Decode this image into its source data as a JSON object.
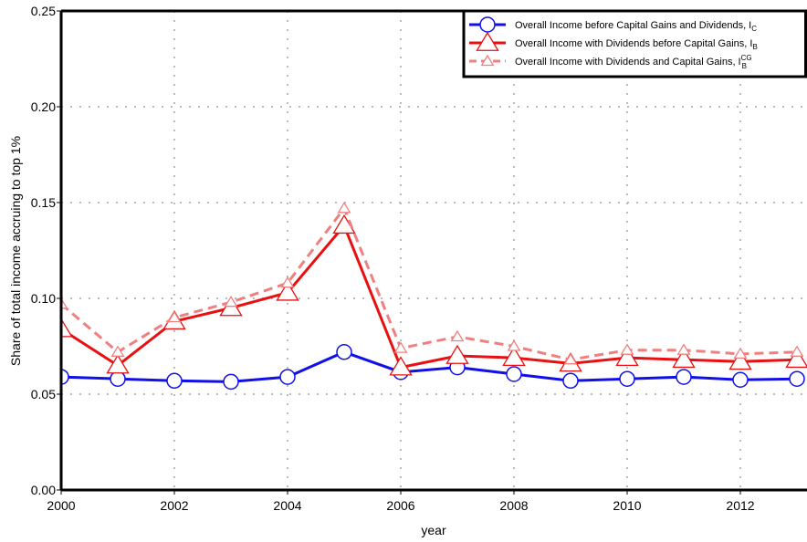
{
  "chart_data": {
    "type": "line",
    "x_label": "year",
    "y_label": "Share of total income accruing to top 1%",
    "x": [
      2000,
      2001,
      2002,
      2003,
      2004,
      2005,
      2006,
      2007,
      2008,
      2009,
      2010,
      2011,
      2012,
      2013
    ],
    "series": [
      {
        "name": "Overall Income before Capital Gains and Dividends, I",
        "subscript": "C",
        "color": "#1010e8",
        "marker": "circle",
        "dashed": false,
        "values": [
          0.059,
          0.058,
          0.057,
          0.0565,
          0.059,
          0.072,
          0.0615,
          0.064,
          0.0605,
          0.057,
          0.058,
          0.059,
          0.0575,
          0.058
        ]
      },
      {
        "name": "Overall Income with Dividends before Capital Gains, I",
        "subscript": "B",
        "color": "#e81010",
        "marker": "triangle",
        "dashed": false,
        "values": [
          0.084,
          0.065,
          0.088,
          0.095,
          0.103,
          0.138,
          0.064,
          0.07,
          0.069,
          0.066,
          0.069,
          0.068,
          0.067,
          0.068
        ]
      },
      {
        "name": "Overall Income with Dividends and Capital Gains, I",
        "subscript": "B",
        "superscript": "CG",
        "color": "#f08080",
        "marker": "small-triangle",
        "dashed": true,
        "values": [
          0.097,
          0.072,
          0.09,
          0.098,
          0.108,
          0.147,
          0.074,
          0.08,
          0.075,
          0.068,
          0.073,
          0.073,
          0.071,
          0.072
        ]
      }
    ],
    "xlim": [
      2000,
      2013.2
    ],
    "ylim": [
      0,
      0.25
    ],
    "xticks": [
      2000,
      2002,
      2004,
      2006,
      2008,
      2010,
      2012
    ],
    "yticks": [
      {
        "value": 0,
        "label": "0.00"
      },
      {
        "value": 0.05,
        "label": "0.05"
      },
      {
        "value": 0.1,
        "label": "0.10"
      },
      {
        "value": 0.15,
        "label": "0.15"
      },
      {
        "value": 0.2,
        "label": "0.20"
      },
      {
        "value": 0.25,
        "label": "0.25"
      }
    ],
    "grid": true,
    "legend_position": "top-right"
  }
}
